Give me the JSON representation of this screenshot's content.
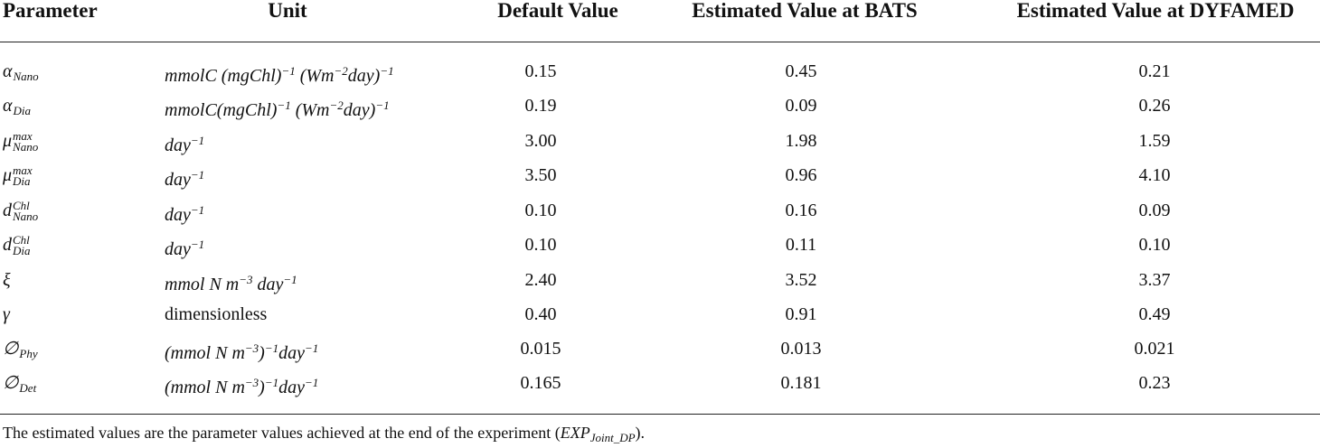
{
  "header": {
    "parameter": "Parameter",
    "unit": "Unit",
    "default": "Default Value",
    "bats": "Estimated Value at BATS",
    "dyfamed": "Estimated Value at DYFAMED"
  },
  "rows": [
    {
      "sym": "α",
      "sub": "Nano",
      "unit_main": "mmolC (mgChl)",
      "unit_sup1": "−1",
      "unit_mid": " (Wm",
      "unit_sup2": "−2",
      "unit_end": "day)",
      "unit_sup3": "−1",
      "default": "0.15",
      "bats": "0.45",
      "dyfamed": "0.21"
    },
    {
      "sym": "α",
      "sub": "Dia",
      "unit_main": "mmolC(mgChl)",
      "unit_sup1": "−1",
      "unit_mid": " (Wm",
      "unit_sup2": "−2",
      "unit_end": "day)",
      "unit_sup3": "−1",
      "default": "0.19",
      "bats": "0.09",
      "dyfamed": "0.26"
    },
    {
      "sym": "μ",
      "sup": "max",
      "sub": "Nano",
      "unit_main": "day",
      "unit_sup1": "−1",
      "default": "3.00",
      "bats": "1.98",
      "dyfamed": "1.59"
    },
    {
      "sym": "μ",
      "sup": "max",
      "sub": "Dia",
      "unit_main": "day",
      "unit_sup1": "−1",
      "default": "3.50",
      "bats": "0.96",
      "dyfamed": "4.10"
    },
    {
      "sym": "d",
      "sup": "Chl",
      "sub": "Nano",
      "unit_main": "day",
      "unit_sup1": "−1",
      "default": "0.10",
      "bats": "0.16",
      "dyfamed": "0.09"
    },
    {
      "sym": "d",
      "sup": "Chl",
      "sub": "Dia",
      "unit_main": "day",
      "unit_sup1": "−1",
      "default": "0.10",
      "bats": "0.11",
      "dyfamed": "0.10"
    },
    {
      "sym": "ξ",
      "unit_main": "mmol N m",
      "unit_sup1": "−3",
      "unit_mid": " day",
      "unit_sup2": "−1",
      "default": "2.40",
      "bats": "3.52",
      "dyfamed": "3.37"
    },
    {
      "sym": "γ",
      "unit_text": "dimensionless",
      "default": "0.40",
      "bats": "0.91",
      "dyfamed": "0.49"
    },
    {
      "sym": "∅",
      "sub": "Phy",
      "unit_main": "(mmol N m",
      "unit_sup1": "−3",
      "unit_mid": ")",
      "unit_sup2": "−1",
      "unit_end": "day",
      "unit_sup3": "−1",
      "default": "0.015",
      "bats": "0.013",
      "dyfamed": "0.021"
    },
    {
      "sym": "∅",
      "sub": "Det",
      "unit_main": "(mmol N m",
      "unit_sup1": "−3",
      "unit_mid": ")",
      "unit_sup2": "−1",
      "unit_end": "day",
      "unit_sup3": "−1",
      "default": "0.165",
      "bats": "0.181",
      "dyfamed": "0.23"
    }
  ],
  "footnote": {
    "text": "The estimated values are the parameter values achieved at the end of the experiment (",
    "exp": "EXP",
    "exp_sub": "Joint_DP",
    "end": ")."
  }
}
